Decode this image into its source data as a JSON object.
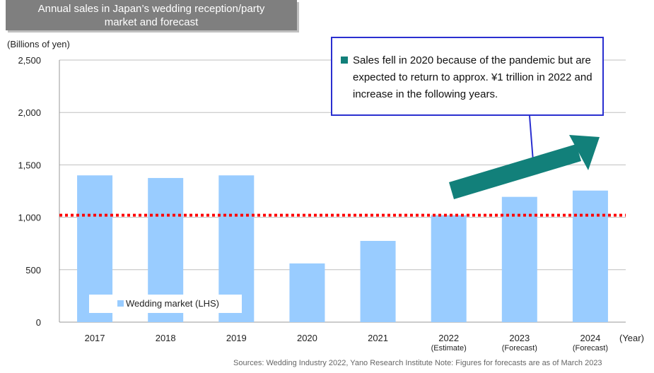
{
  "title_line1": "Annual sales in Japan’s wedding reception/party",
  "title_line2": "market and forecast",
  "callout_text": "Sales fell in 2020 because of the pandemic but are expected to return to approx. ¥1 trillion in 2022 and increase in the following years.",
  "sources_text": "Sources:  Wedding Industry 2022, Yano Research Institute    Note: Figures for forecasts are as of March 2023",
  "colors": {
    "bar": "#99ccff",
    "reference_line": "#ff0000",
    "arrow": "#12807a",
    "callout_border": "#2a2fd0",
    "title_bg": "#7f7f7f"
  },
  "chart_data": {
    "type": "bar",
    "categories": [
      "2017",
      "2018",
      "2019",
      "2020",
      "2021",
      "2022",
      "2023",
      "2024"
    ],
    "category_sublabels": [
      "",
      "",
      "",
      "",
      "",
      "(Estimate)",
      "(Forecast)",
      "(Forecast)"
    ],
    "series": [
      {
        "name": "Wedding market (LHS)",
        "values": [
          1400,
          1375,
          1400,
          560,
          775,
          1020,
          1195,
          1255
        ]
      }
    ],
    "ylabel": "(Billions of yen)",
    "xlabel": "(Year)",
    "ylim": [
      0,
      2500
    ],
    "yticks": [
      0,
      500,
      1000,
      1500,
      2000,
      2500
    ],
    "ytick_labels": [
      "0",
      "500",
      "1,000",
      "1,500",
      "2,000",
      "2,500"
    ],
    "reference_line": {
      "value": 1020,
      "style": "dotted",
      "color": "#ff0000"
    },
    "grid": true,
    "legend_position": "bottom-left"
  }
}
